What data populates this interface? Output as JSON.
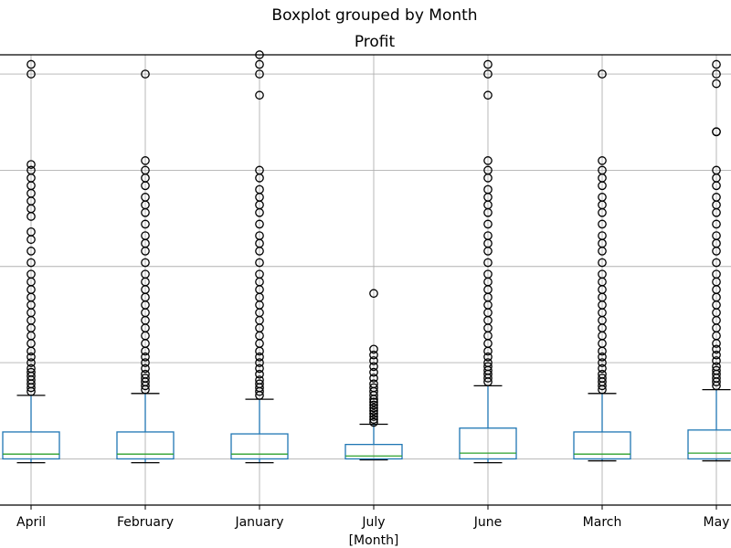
{
  "chart_data": {
    "type": "boxplot",
    "title": "Boxplot grouped by Month",
    "subtitle": "Profit",
    "xlabel": "[Month]",
    "ylabel": "",
    "categories": [
      "April",
      "February",
      "January",
      "July",
      "June",
      "March",
      "May"
    ],
    "ylim": [
      -2.4,
      21.0
    ],
    "grid": true,
    "colors": {
      "box": "#1f77b4",
      "median": "#2ca02c",
      "outlier": "#000000",
      "grid": "#b0b0b0"
    },
    "boxes": [
      {
        "name": "April",
        "whisker_low": -0.2,
        "q1": 0.0,
        "median": 0.25,
        "q3": 1.4,
        "whisker_high": 3.3,
        "outliers": [
          3.5,
          3.7,
          3.9,
          4.1,
          4.3,
          4.5,
          4.7,
          5.0,
          5.3,
          5.6,
          6.0,
          6.4,
          6.8,
          7.2,
          7.6,
          8.0,
          8.4,
          8.8,
          9.2,
          9.6,
          10.2,
          10.8,
          11.4,
          11.8,
          12.6,
          13.0,
          13.4,
          13.8,
          14.2,
          14.6,
          15.0,
          15.3,
          20.0,
          20.5
        ]
      },
      {
        "name": "February",
        "whisker_low": -0.2,
        "q1": 0.0,
        "median": 0.25,
        "q3": 1.4,
        "whisker_high": 3.4,
        "outliers": [
          3.6,
          3.8,
          4.0,
          4.2,
          4.4,
          4.7,
          5.0,
          5.3,
          5.6,
          6.0,
          6.4,
          6.8,
          7.2,
          7.6,
          8.0,
          8.4,
          8.8,
          9.2,
          9.6,
          10.2,
          10.8,
          11.2,
          11.6,
          12.2,
          12.8,
          13.2,
          13.6,
          14.2,
          14.6,
          15.0,
          15.5,
          20.0
        ]
      },
      {
        "name": "January",
        "whisker_low": -0.2,
        "q1": 0.0,
        "median": 0.25,
        "q3": 1.3,
        "whisker_high": 3.1,
        "outliers": [
          3.3,
          3.5,
          3.7,
          3.9,
          4.1,
          4.4,
          4.7,
          5.0,
          5.3,
          5.6,
          6.0,
          6.4,
          6.8,
          7.2,
          7.6,
          8.0,
          8.4,
          8.8,
          9.2,
          9.6,
          10.2,
          10.8,
          11.2,
          11.6,
          12.2,
          12.8,
          13.2,
          13.6,
          14.0,
          14.6,
          15.0,
          18.9,
          20.0,
          20.5,
          21.0
        ]
      },
      {
        "name": "July",
        "whisker_low": -0.05,
        "q1": 0.0,
        "median": 0.15,
        "q3": 0.75,
        "whisker_high": 1.8,
        "outliers": [
          1.9,
          2.05,
          2.2,
          2.35,
          2.5,
          2.65,
          2.8,
          2.95,
          3.1,
          3.3,
          3.5,
          3.7,
          3.9,
          4.2,
          4.5,
          4.8,
          5.1,
          5.4,
          5.7,
          8.6
        ]
      },
      {
        "name": "June",
        "whisker_low": -0.2,
        "q1": 0.0,
        "median": 0.3,
        "q3": 1.6,
        "whisker_high": 3.8,
        "outliers": [
          4.0,
          4.2,
          4.4,
          4.6,
          4.8,
          5.0,
          5.3,
          5.6,
          6.0,
          6.4,
          6.8,
          7.2,
          7.6,
          8.0,
          8.4,
          8.8,
          9.2,
          9.6,
          10.2,
          10.8,
          11.2,
          11.6,
          12.2,
          12.8,
          13.2,
          13.6,
          14.0,
          14.6,
          15.0,
          15.5,
          18.9,
          20.0,
          20.5
        ]
      },
      {
        "name": "March",
        "whisker_low": -0.1,
        "q1": 0.0,
        "median": 0.25,
        "q3": 1.4,
        "whisker_high": 3.4,
        "outliers": [
          3.6,
          3.8,
          4.0,
          4.2,
          4.4,
          4.7,
          5.0,
          5.3,
          5.6,
          6.0,
          6.4,
          6.8,
          7.2,
          7.6,
          8.0,
          8.4,
          8.8,
          9.2,
          9.6,
          10.2,
          10.8,
          11.2,
          11.6,
          12.2,
          12.8,
          13.2,
          13.6,
          14.2,
          14.6,
          15.0,
          15.5,
          20.0
        ]
      },
      {
        "name": "May",
        "whisker_low": -0.1,
        "q1": 0.0,
        "median": 0.3,
        "q3": 1.5,
        "whisker_high": 3.6,
        "outliers": [
          3.8,
          4.0,
          4.2,
          4.4,
          4.6,
          4.8,
          5.1,
          5.4,
          5.7,
          6.0,
          6.4,
          6.8,
          7.2,
          7.6,
          8.0,
          8.4,
          8.8,
          9.2,
          9.6,
          10.2,
          10.8,
          11.2,
          11.6,
          12.2,
          12.8,
          13.2,
          13.6,
          14.2,
          14.6,
          15.0,
          17.0,
          17.0,
          19.5,
          20.0,
          20.5
        ]
      }
    ]
  }
}
